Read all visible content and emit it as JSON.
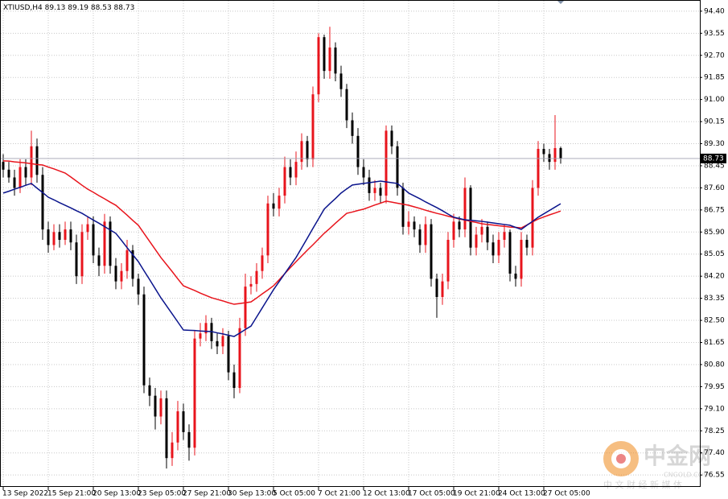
{
  "chart_data": {
    "type": "candlestick",
    "title": "XTIUSD,H4",
    "categories": [
      "13 Sep 2022",
      null,
      null,
      null,
      null,
      null,
      null,
      null,
      "15 Sep 21:00",
      null,
      null,
      null,
      null,
      null,
      null,
      null,
      "20 Sep 13:00",
      null,
      null,
      null,
      null,
      null,
      null,
      null,
      "23 Sep 05:00",
      null,
      null,
      null,
      null,
      null,
      null,
      null,
      "27 Sep 21:00",
      null,
      null,
      null,
      null,
      null,
      null,
      null,
      "30 Sep 13:00",
      null,
      null,
      null,
      null,
      null,
      null,
      null,
      "5 Oct 05:00",
      null,
      null,
      null,
      null,
      null,
      null,
      null,
      "7 Oct 21:00",
      null,
      null,
      null,
      null,
      null,
      null,
      null,
      "12 Oct 13:00",
      null,
      null,
      null,
      null,
      null,
      null,
      null,
      "17 Oct 05:00",
      null,
      null,
      null,
      null,
      null,
      null,
      null,
      "19 Oct 21:00",
      null,
      null,
      null,
      null,
      null,
      null,
      null,
      "24 Oct 13:00",
      null,
      null,
      null,
      null,
      null,
      null,
      null,
      "27 Oct 05:00",
      null,
      null,
      null
    ],
    "open": [
      88.6,
      88.3,
      88.0,
      87.6,
      88.4,
      88.0,
      89.2,
      88.1,
      86.0,
      85.4,
      85.9,
      85.6,
      86.0,
      85.5,
      84.2,
      85.9,
      86.2,
      85.0,
      84.6,
      86.3,
      84.6,
      84.0,
      84.4,
      85.2,
      84.1,
      83.5,
      80.0,
      79.6,
      78.8,
      79.5,
      77.2,
      77.8,
      79.0,
      78.2,
      77.6,
      81.8,
      82.0,
      82.4,
      81.7,
      81.5,
      81.9,
      80.5,
      79.9,
      82.2,
      83.8,
      83.9,
      84.4,
      85.0,
      87.0,
      86.8,
      87.3,
      88.4,
      88.0,
      88.6,
      89.4,
      88.7,
      91.2,
      93.4,
      92.1,
      93.0,
      92.0,
      91.4,
      90.2,
      89.6,
      88.4,
      88.0,
      87.4,
      87.6,
      87.3,
      89.8,
      89.2,
      87.6,
      86.1,
      86.3,
      86.0,
      85.4,
      86.2,
      84.1,
      83.4,
      84.0,
      85.6,
      86.3,
      86.0,
      87.6,
      85.3,
      85.8,
      86.1,
      85.5,
      85.0,
      85.6,
      85.9,
      84.3,
      84.1,
      85.6,
      85.3,
      87.6,
      89.1,
      88.9,
      88.6,
      89.13
    ],
    "high": [
      88.9,
      88.6,
      88.3,
      88.7,
      88.7,
      89.8,
      89.5,
      88.4,
      86.3,
      86.2,
      86.2,
      86.3,
      86.3,
      85.8,
      86.2,
      86.5,
      86.5,
      85.3,
      86.6,
      86.5,
      84.9,
      84.7,
      85.6,
      85.4,
      84.3,
      83.8,
      80.3,
      79.9,
      79.8,
      79.8,
      78.2,
      79.4,
      79.3,
      78.5,
      82.1,
      82.4,
      82.7,
      82.6,
      82.0,
      82.2,
      82.1,
      80.8,
      82.6,
      84.3,
      84.2,
      84.7,
      85.3,
      87.3,
      87.4,
      87.6,
      88.8,
      88.7,
      89.0,
      89.7,
      89.6,
      91.5,
      93.55,
      93.5,
      93.8,
      93.2,
      92.3,
      91.6,
      90.5,
      89.9,
      88.7,
      88.3,
      87.9,
      87.8,
      90.0,
      90.0,
      89.4,
      87.8,
      86.7,
      86.5,
      86.2,
      86.5,
      86.4,
      84.3,
      84.3,
      85.9,
      86.6,
      86.5,
      88.0,
      87.7,
      86.1,
      86.4,
      86.3,
      85.8,
      85.9,
      86.2,
      86.0,
      84.6,
      85.9,
      85.8,
      87.9,
      89.4,
      89.3,
      89.1,
      90.4,
      89.19
    ],
    "low": [
      88.0,
      87.8,
      87.3,
      87.4,
      87.7,
      87.7,
      87.8,
      85.6,
      85.1,
      85.2,
      85.3,
      85.4,
      85.2,
      83.9,
      83.9,
      85.6,
      84.7,
      84.2,
      84.3,
      84.3,
      83.7,
      83.7,
      84.1,
      83.8,
      83.1,
      79.7,
      79.2,
      78.3,
      78.5,
      76.8,
      76.9,
      77.5,
      77.9,
      77.1,
      77.3,
      81.5,
      81.7,
      81.4,
      81.2,
      81.2,
      80.2,
      79.5,
      79.7,
      81.9,
      83.5,
      83.6,
      84.1,
      84.7,
      86.5,
      86.5,
      87.0,
      87.7,
      87.7,
      88.3,
      88.4,
      88.4,
      90.9,
      91.8,
      91.8,
      91.7,
      91.1,
      89.9,
      89.3,
      88.1,
      87.7,
      87.1,
      87.1,
      87.0,
      87.0,
      88.9,
      87.3,
      85.8,
      85.8,
      85.7,
      85.1,
      85.1,
      83.8,
      82.6,
      83.1,
      83.7,
      85.3,
      85.7,
      85.7,
      85.0,
      85.0,
      85.5,
      85.2,
      84.7,
      84.7,
      85.3,
      84.0,
      83.8,
      83.8,
      85.0,
      85.0,
      87.3,
      88.6,
      88.3,
      88.3,
      88.53
    ],
    "close": [
      88.3,
      88.0,
      87.6,
      88.4,
      88.0,
      89.2,
      88.1,
      86.0,
      85.4,
      85.9,
      85.6,
      86.0,
      85.5,
      84.2,
      85.9,
      86.2,
      85.0,
      84.6,
      86.3,
      84.6,
      84.0,
      84.4,
      85.2,
      84.1,
      83.5,
      80.0,
      79.6,
      78.8,
      79.5,
      77.2,
      77.8,
      79.0,
      78.2,
      77.6,
      81.8,
      82.0,
      82.4,
      81.7,
      81.5,
      81.9,
      80.5,
      79.9,
      82.2,
      83.8,
      83.9,
      84.4,
      85.0,
      87.0,
      86.8,
      87.3,
      88.4,
      88.0,
      88.6,
      89.4,
      88.7,
      91.2,
      93.4,
      92.1,
      93.0,
      92.0,
      91.4,
      90.2,
      89.6,
      88.4,
      88.0,
      87.4,
      87.6,
      87.3,
      89.8,
      89.2,
      87.6,
      86.1,
      86.3,
      86.0,
      85.4,
      86.2,
      84.1,
      83.4,
      84.0,
      85.6,
      86.3,
      86.0,
      87.6,
      85.3,
      85.8,
      86.1,
      85.5,
      85.0,
      85.6,
      85.9,
      84.3,
      84.1,
      85.6,
      85.3,
      87.6,
      89.1,
      88.9,
      88.6,
      89.13,
      88.73
    ],
    "up_color": "#e8141c",
    "down_color": "#000000",
    "lines": [
      {
        "color": "#e8141c",
        "values": [
          88.64,
          88.63,
          88.6,
          88.58,
          88.56,
          88.53,
          88.5,
          88.48,
          88.4,
          88.33,
          88.25,
          88.17,
          88.02,
          87.86,
          87.7,
          87.55,
          87.43,
          87.3,
          87.18,
          87.05,
          86.93,
          86.74,
          86.55,
          86.35,
          86.16,
          85.85,
          85.54,
          85.23,
          84.92,
          84.65,
          84.38,
          84.1,
          83.83,
          83.74,
          83.65,
          83.55,
          83.46,
          83.37,
          83.31,
          83.25,
          83.18,
          83.12,
          83.15,
          83.18,
          83.21,
          83.36,
          83.52,
          83.67,
          83.83,
          84.06,
          84.3,
          84.53,
          84.76,
          84.98,
          85.2,
          85.41,
          85.63,
          85.85,
          86.04,
          86.24,
          86.43,
          86.62,
          86.67,
          86.73,
          86.78,
          86.86,
          86.94,
          87.01,
          87.09,
          87.05,
          87.01,
          86.97,
          86.93,
          86.87,
          86.81,
          86.74,
          86.68,
          86.62,
          86.57,
          86.51,
          86.46,
          86.4,
          86.36,
          86.31,
          86.27,
          86.22,
          86.19,
          86.17,
          86.14,
          86.12,
          86.09,
          86.08,
          86.06,
          86.17,
          86.29,
          86.4,
          86.48,
          86.56,
          86.63,
          86.71
        ]
      },
      {
        "color": "#0a148c",
        "values": [
          87.4,
          87.47,
          87.55,
          87.62,
          87.7,
          87.77,
          87.59,
          87.42,
          87.24,
          87.14,
          87.03,
          86.93,
          86.83,
          86.72,
          86.62,
          86.49,
          86.36,
          86.24,
          86.11,
          85.98,
          85.85,
          85.58,
          85.3,
          85.03,
          84.76,
          84.41,
          84.07,
          83.72,
          83.37,
          83.06,
          82.75,
          82.44,
          82.13,
          82.12,
          82.11,
          82.09,
          82.08,
          82.07,
          82.02,
          81.98,
          81.93,
          81.88,
          82.01,
          82.15,
          82.28,
          82.63,
          82.98,
          83.33,
          83.68,
          83.99,
          84.3,
          84.61,
          84.92,
          85.29,
          85.66,
          86.04,
          86.41,
          86.78,
          86.99,
          87.19,
          87.4,
          87.56,
          87.71,
          87.74,
          87.77,
          87.8,
          87.83,
          87.86,
          87.83,
          87.8,
          87.77,
          87.59,
          87.4,
          87.29,
          87.18,
          87.06,
          86.95,
          86.84,
          86.72,
          86.59,
          86.47,
          86.42,
          86.37,
          86.35,
          86.33,
          86.31,
          86.28,
          86.25,
          86.22,
          86.19,
          86.16,
          86.08,
          86.0,
          86.16,
          86.31,
          86.47,
          86.6,
          86.73,
          86.86,
          86.99
        ]
      }
    ],
    "ylim": [
      76.09,
      94.83
    ],
    "yticks": [
      {
        "value": 94.4,
        "label": "94.40"
      },
      {
        "value": 93.55,
        "label": "93.55"
      },
      {
        "value": 92.7,
        "label": "92.70"
      },
      {
        "value": 91.85,
        "label": "91.85"
      },
      {
        "value": 91.0,
        "label": "91.00"
      },
      {
        "value": 90.15,
        "label": "90.15"
      },
      {
        "value": 89.3,
        "label": "89.30"
      },
      {
        "value": 88.45,
        "label": "88.45"
      },
      {
        "value": 87.6,
        "label": "87.60"
      },
      {
        "value": 86.75,
        "label": "86.75"
      },
      {
        "value": 85.9,
        "label": "85.90"
      },
      {
        "value": 85.05,
        "label": "85.05"
      },
      {
        "value": 84.2,
        "label": "84.20"
      },
      {
        "value": 83.35,
        "label": "83.35"
      },
      {
        "value": 82.5,
        "label": "82.50"
      },
      {
        "value": 81.65,
        "label": "81.65"
      },
      {
        "value": 80.8,
        "label": "80.80"
      },
      {
        "value": 79.95,
        "label": "79.95"
      },
      {
        "value": 79.1,
        "label": "79.10"
      },
      {
        "value": 78.25,
        "label": "78.25"
      },
      {
        "value": 77.4,
        "label": "77.40"
      },
      {
        "value": 76.55,
        "label": "76.55"
      }
    ],
    "grid": true,
    "watermark": {
      "name": "中金网",
      "domain": "CNGOLD.COM",
      "slogan": "中 文 财 经 新 媒 体"
    }
  }
}
